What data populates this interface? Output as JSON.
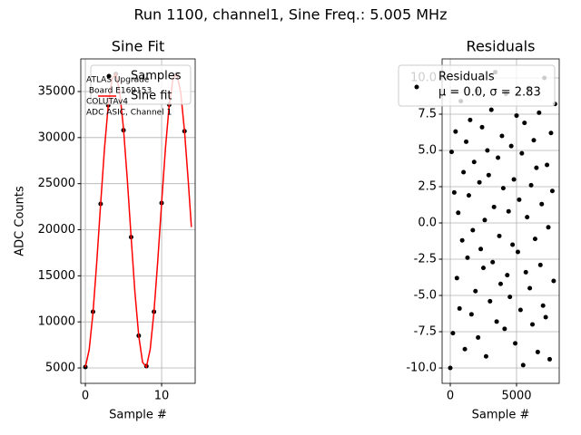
{
  "title": "Run 1100, channel1, Sine Freq.: 5.005 MHz",
  "chart_data": [
    {
      "type": "scatter",
      "title": "Sine Fit",
      "xlabel": "Sample #",
      "ylabel": "ADC Counts",
      "xlim": [
        -0.6,
        14.4
      ],
      "ylim": [
        3330,
        38540
      ],
      "xticks": [
        0,
        10
      ],
      "yticks": [
        5000,
        10000,
        15000,
        20000,
        25000,
        30000,
        35000
      ],
      "grid": true,
      "legend": "upper right",
      "annotation": [
        "ATLAS Upgrade",
        " Board E169153",
        "COLUTAv4",
        "ADC ASIC, Channel 1"
      ],
      "series": [
        {
          "name": "Samples",
          "color": "#000000",
          "style": "marker",
          "x": [
            0,
            1,
            2,
            3,
            4,
            5,
            6,
            7,
            8,
            9,
            10,
            11,
            12,
            13
          ],
          "values": [
            5100,
            11100,
            22800,
            33496,
            36904,
            30800,
            19200,
            8500,
            5200,
            11100,
            22900,
            33576,
            36888,
            30700
          ]
        },
        {
          "name": "Sine fit",
          "color": "#ff0000",
          "style": "line",
          "x": [
            0,
            0.5,
            1,
            1.5,
            2,
            2.5,
            3,
            3.5,
            4,
            4.5,
            5,
            5.5,
            6,
            6.5,
            7,
            7.5,
            8,
            8.5,
            9,
            9.5,
            10,
            10.5,
            11,
            11.5,
            12,
            12.5,
            13,
            13.5,
            13.9
          ],
          "values": [
            5096,
            6984,
            11000,
            16552,
            22776,
            28744,
            33496,
            36376,
            36904,
            35000,
            30968,
            25448,
            19176,
            13208,
            8472,
            5624,
            5096,
            7016,
            11128,
            16696,
            22920,
            28824,
            33576,
            36424,
            36888,
            34904,
            30744,
            25192,
            20296
          ]
        }
      ]
    },
    {
      "type": "scatter",
      "title": "Residuals",
      "xlabel": "Sample #",
      "xlim": [
        -616,
        8219
      ],
      "ylim": [
        -11.06,
        11.31
      ],
      "xticks": [
        0,
        5000
      ],
      "yticks": [
        {
          "value": -10,
          "label": "-10.0"
        },
        -7.5,
        {
          "value": -5,
          "label": "-5.0"
        },
        -2.5,
        {
          "value": 0,
          "label": "0.0"
        },
        2.5,
        {
          "value": 5,
          "label": "5.0"
        },
        7.5,
        {
          "value": 10,
          "label": "10.0"
        }
      ],
      "grid": true,
      "legend": "upper right",
      "legend_note": "μ = 0.0, σ = 2.83",
      "series": [
        {
          "name": "Residuals",
          "color": "#000000",
          "style": "marker",
          "x": [
            0,
            100,
            200,
            300,
            400,
            500,
            600,
            700,
            800,
            900,
            1000,
            1100,
            1200,
            1300,
            1400,
            1500,
            1600,
            1700,
            1800,
            1900,
            2000,
            2100,
            2200,
            2300,
            2400,
            2500,
            2600,
            2700,
            2800,
            2900,
            3000,
            3100,
            3200,
            3300,
            3400,
            3500,
            3600,
            3700,
            3800,
            3900,
            4000,
            4100,
            4200,
            4300,
            4400,
            4500,
            4600,
            4700,
            4800,
            4900,
            5000,
            5100,
            5200,
            5300,
            5400,
            5500,
            5600,
            5700,
            5800,
            5900,
            6000,
            6100,
            6200,
            6300,
            6400,
            6500,
            6600,
            6700,
            6800,
            6900,
            7000,
            7100,
            7200,
            7300,
            7400,
            7500,
            7600,
            7700,
            7800,
            7900
          ],
          "values": [
            -10.0,
            4.9,
            -7.6,
            2.1,
            6.3,
            -3.8,
            0.7,
            -5.9,
            8.4,
            -1.2,
            3.5,
            -8.7,
            5.6,
            -2.4,
            1.9,
            7.1,
            -6.3,
            -0.5,
            4.2,
            -4.7,
            9.1,
            -7.9,
            2.8,
            -1.8,
            6.6,
            -3.1,
            0.2,
            -9.2,
            5.0,
            3.3,
            -5.4,
            7.8,
            -2.7,
            1.1,
            10.4,
            -6.8,
            4.5,
            -0.9,
            -4.2,
            6.0,
            2.4,
            -7.3,
            8.9,
            -3.6,
            0.8,
            -5.1,
            5.3,
            -1.5,
            3.0,
            -8.3,
            7.4,
            -2.0,
            1.6,
            -6.0,
            4.8,
            -9.8,
            6.9,
            -3.4,
            0.4,
            9.3,
            -4.5,
            2.6,
            -7.0,
            5.7,
            -1.1,
            3.8,
            -8.9,
            7.6,
            -2.9,
            1.3,
            -5.7,
            10.0,
            -6.5,
            4.0,
            -0.3,
            -9.4,
            6.2,
            2.2,
            -4.0,
            8.2
          ]
        }
      ]
    }
  ]
}
